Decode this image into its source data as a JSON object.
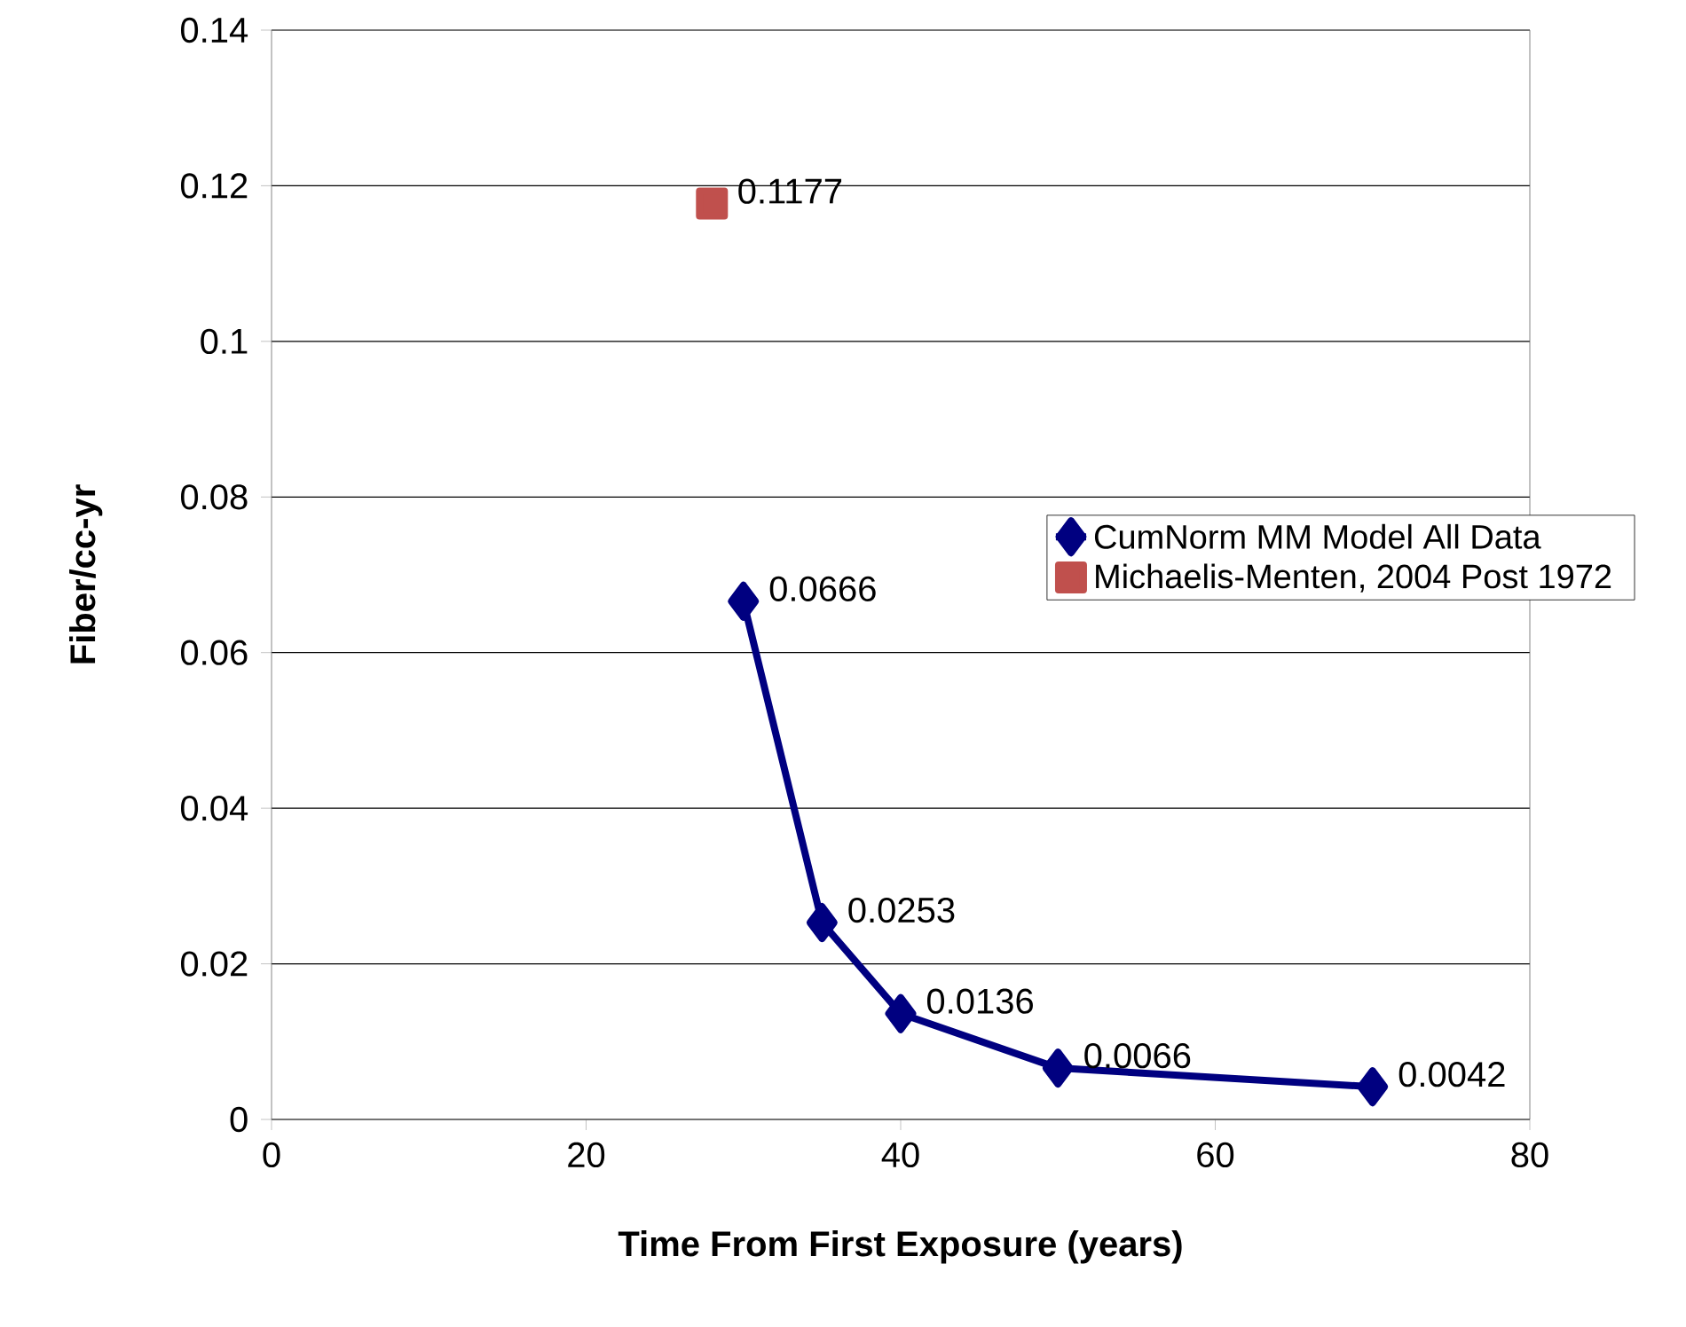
{
  "chart_data": {
    "type": "line",
    "xlabel": "Time From First Exposure (years)",
    "ylabel": "Fiber/cc-yr",
    "series": [
      {
        "name": "CumNorm MM Model All Data",
        "color": "#000080",
        "marker": "diamond",
        "x": [
          30,
          35,
          40,
          50,
          70
        ],
        "values": [
          0.0666,
          0.0253,
          0.0136,
          0.0066,
          0.0042
        ]
      },
      {
        "name": "Michaelis-Menten, 2004 Post 1972",
        "color": "#c0504d",
        "marker": "square",
        "x": [
          28
        ],
        "values": [
          0.1177
        ]
      }
    ],
    "xlim": [
      0,
      80
    ],
    "xticks": [
      0,
      20,
      40,
      60,
      80
    ],
    "ylim": [
      0,
      0.14
    ],
    "yticks": [
      0,
      0.02,
      0.04,
      0.06,
      0.08,
      0.1,
      0.12,
      0.14
    ],
    "grid": "y",
    "legend": "right",
    "data_labels": true
  }
}
